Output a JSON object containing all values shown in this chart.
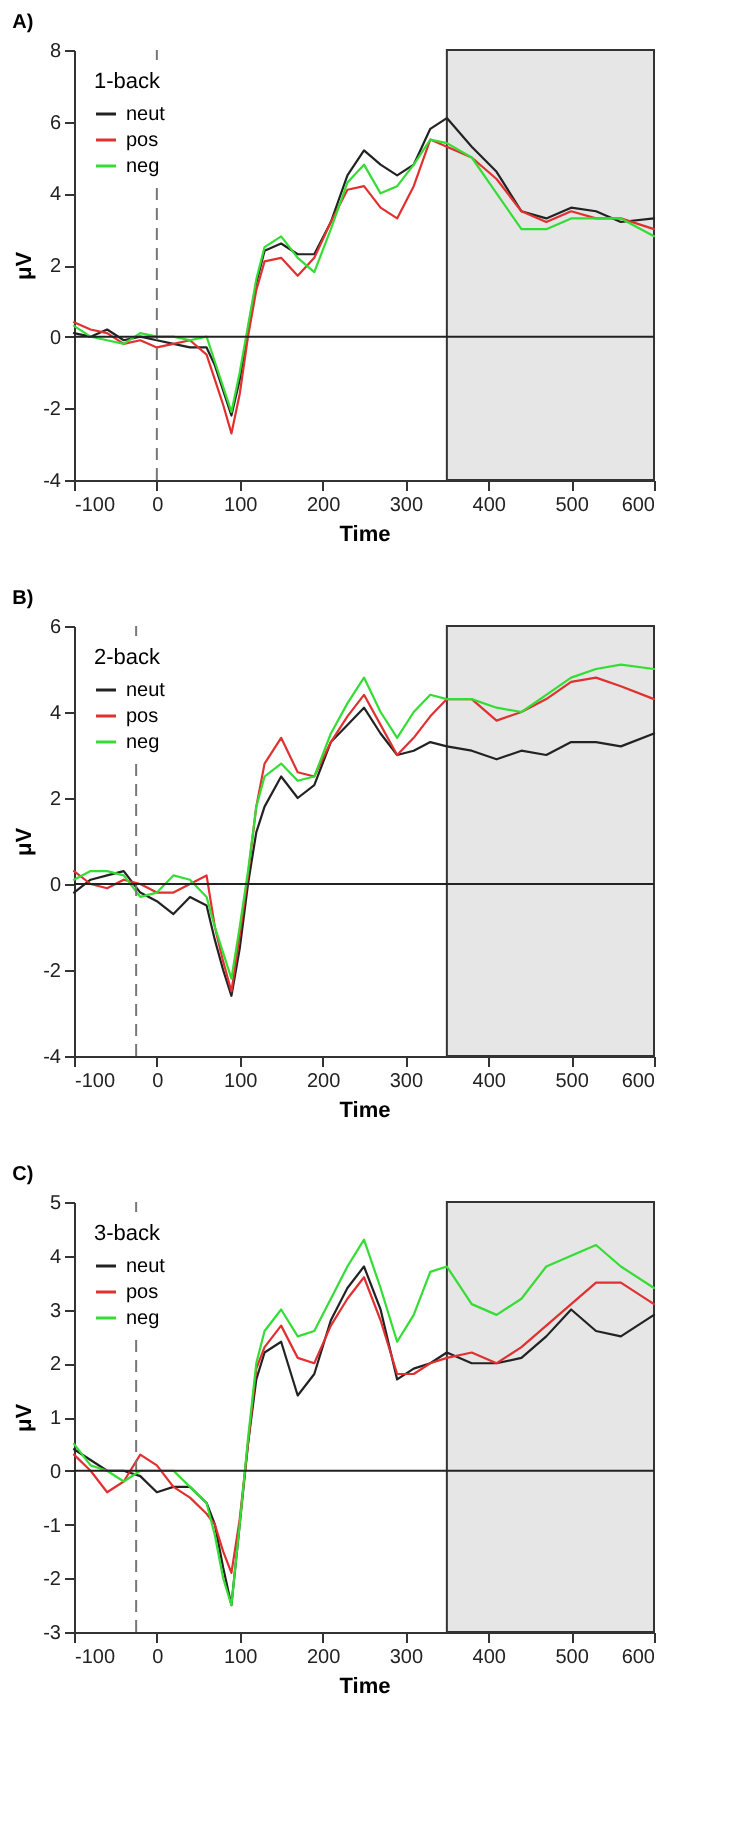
{
  "chart_data": [
    {
      "type": "line",
      "title": "A)",
      "xlabel": "Time",
      "ylabel": "μV",
      "legend_title": "1-back",
      "legend": "top left",
      "grid": false,
      "line_style": "solid",
      "marker": "none",
      "xlim": [
        -100,
        600
      ],
      "xticks": [
        -100,
        0,
        100,
        200,
        300,
        400,
        500,
        600
      ],
      "ylim": [
        -4,
        8
      ],
      "yticks": [
        -4,
        -2,
        0,
        2,
        4,
        6,
        8
      ],
      "x": [
        -100,
        -80,
        -60,
        -40,
        -20,
        0,
        20,
        40,
        60,
        70,
        80,
        90,
        100,
        110,
        120,
        130,
        150,
        170,
        190,
        210,
        230,
        250,
        270,
        290,
        310,
        330,
        350,
        380,
        410,
        440,
        470,
        500,
        530,
        560,
        600
      ],
      "series": [
        {
          "name": "neut",
          "color": "#222222",
          "values": [
            0.1,
            0.0,
            0.2,
            -0.1,
            0,
            -0.1,
            -0.2,
            -0.3,
            -0.3,
            -0.8,
            -1.5,
            -2.2,
            -1.2,
            0.2,
            1.5,
            2.4,
            2.6,
            2.3,
            2.3,
            3.2,
            4.5,
            5.2,
            4.8,
            4.5,
            4.8,
            5.8,
            6.1,
            5.3,
            4.6,
            3.5,
            3.3,
            3.6,
            3.5,
            3.2,
            3.3
          ]
        },
        {
          "name": "pos",
          "color": "#e03030",
          "values": [
            0.4,
            0.2,
            0.1,
            -0.2,
            -0.1,
            -0.3,
            -0.2,
            -0.1,
            -0.5,
            -1.2,
            -1.9,
            -2.7,
            -1.6,
            0.0,
            1.3,
            2.1,
            2.2,
            1.7,
            2.2,
            3.2,
            4.1,
            4.2,
            3.6,
            3.3,
            4.2,
            5.5,
            5.3,
            5.0,
            4.4,
            3.5,
            3.2,
            3.5,
            3.3,
            3.3,
            3.0
          ]
        },
        {
          "name": "neg",
          "color": "#33dd33",
          "values": [
            0.3,
            0.0,
            -0.1,
            -0.2,
            0.1,
            0.0,
            0.0,
            -0.1,
            0.0,
            -0.7,
            -1.4,
            -2.1,
            -1.0,
            0.3,
            1.6,
            2.5,
            2.8,
            2.2,
            1.8,
            3.0,
            4.3,
            4.8,
            4.0,
            4.2,
            4.8,
            5.5,
            5.4,
            5.0,
            4.0,
            3.0,
            3.0,
            3.3,
            3.3,
            3.3,
            2.8
          ]
        }
      ],
      "ref_lines": [
        {
          "axis": "x",
          "value": 0,
          "color": "#777777",
          "line_style": "dashed"
        },
        {
          "axis": "y",
          "value": 0,
          "color": "#222222",
          "line_style": "solid"
        }
      ],
      "bands": [
        {
          "axis": "x",
          "from": 350,
          "to": 600,
          "color": "#e6e6e6"
        }
      ]
    },
    {
      "type": "line",
      "title": "B)",
      "xlabel": "Time",
      "ylabel": "μV",
      "legend_title": "2-back",
      "legend": "top left",
      "grid": false,
      "line_style": "solid",
      "marker": "none",
      "xlim": [
        -100,
        600
      ],
      "xticks": [
        -100,
        0,
        100,
        200,
        300,
        400,
        500,
        600
      ],
      "ylim": [
        -4,
        6
      ],
      "yticks": [
        -4,
        -2,
        0,
        2,
        4,
        6
      ],
      "x": [
        -100,
        -80,
        -60,
        -40,
        -20,
        0,
        20,
        40,
        60,
        70,
        80,
        90,
        100,
        110,
        120,
        130,
        150,
        170,
        190,
        210,
        230,
        250,
        270,
        290,
        310,
        330,
        350,
        380,
        410,
        440,
        470,
        500,
        530,
        560,
        600
      ],
      "series": [
        {
          "name": "neut",
          "color": "#222222",
          "values": [
            -0.2,
            0.1,
            0.2,
            0.3,
            -0.2,
            -0.4,
            -0.7,
            -0.3,
            -0.5,
            -1.3,
            -2.0,
            -2.6,
            -1.5,
            0.0,
            1.2,
            1.8,
            2.5,
            2.0,
            2.3,
            3.3,
            3.7,
            4.1,
            3.5,
            3.0,
            3.1,
            3.3,
            3.2,
            3.1,
            2.9,
            3.1,
            3.0,
            3.3,
            3.3,
            3.2,
            3.5
          ]
        },
        {
          "name": "pos",
          "color": "#e03030",
          "values": [
            0.3,
            0.0,
            -0.1,
            0.1,
            0.0,
            -0.2,
            -0.2,
            0.0,
            0.2,
            -1.0,
            -1.8,
            -2.5,
            -1.2,
            0.2,
            1.8,
            2.8,
            3.4,
            2.6,
            2.5,
            3.3,
            3.9,
            4.4,
            3.7,
            3.0,
            3.4,
            3.9,
            4.3,
            4.3,
            3.8,
            4.0,
            4.3,
            4.7,
            4.8,
            4.6,
            4.3
          ]
        },
        {
          "name": "neg",
          "color": "#33dd33",
          "values": [
            0.1,
            0.3,
            0.3,
            0.2,
            -0.3,
            -0.2,
            0.2,
            0.1,
            -0.3,
            -1.0,
            -1.6,
            -2.2,
            -1.0,
            0.3,
            1.8,
            2.5,
            2.8,
            2.4,
            2.5,
            3.5,
            4.2,
            4.8,
            4.0,
            3.4,
            4.0,
            4.4,
            4.3,
            4.3,
            4.1,
            4.0,
            4.4,
            4.8,
            5.0,
            5.1,
            5.0
          ]
        }
      ],
      "ref_lines": [
        {
          "axis": "x",
          "value": -25,
          "color": "#777777",
          "line_style": "dashed"
        },
        {
          "axis": "y",
          "value": 0,
          "color": "#222222",
          "line_style": "solid"
        }
      ],
      "bands": [
        {
          "axis": "x",
          "from": 350,
          "to": 600,
          "color": "#e6e6e6"
        }
      ]
    },
    {
      "type": "line",
      "title": "C)",
      "xlabel": "Time",
      "ylabel": "μV",
      "legend_title": "3-back",
      "legend": "top left",
      "grid": false,
      "line_style": "solid",
      "marker": "none",
      "xlim": [
        -100,
        600
      ],
      "xticks": [
        -100,
        0,
        100,
        200,
        300,
        400,
        500,
        600
      ],
      "ylim": [
        -3,
        5
      ],
      "yticks": [
        -3,
        -2,
        -1,
        0,
        1,
        2,
        3,
        4,
        5
      ],
      "x": [
        -100,
        -80,
        -60,
        -40,
        -20,
        0,
        20,
        40,
        60,
        70,
        80,
        90,
        100,
        110,
        120,
        130,
        150,
        170,
        190,
        210,
        230,
        250,
        270,
        290,
        310,
        330,
        350,
        380,
        410,
        440,
        470,
        500,
        530,
        560,
        600
      ],
      "series": [
        {
          "name": "neut",
          "color": "#222222",
          "values": [
            0.4,
            0.2,
            0.0,
            0.0,
            -0.1,
            -0.4,
            -0.3,
            -0.3,
            -0.6,
            -1.0,
            -1.8,
            -2.5,
            -1.0,
            0.5,
            1.7,
            2.2,
            2.4,
            1.4,
            1.8,
            2.8,
            3.4,
            3.8,
            3.0,
            1.7,
            1.9,
            2.0,
            2.2,
            2.0,
            2.0,
            2.1,
            2.5,
            3.0,
            2.6,
            2.5,
            2.9
          ]
        },
        {
          "name": "pos",
          "color": "#e03030",
          "values": [
            0.3,
            0.0,
            -0.4,
            -0.2,
            0.3,
            0.1,
            -0.3,
            -0.5,
            -0.8,
            -1.0,
            -1.5,
            -1.9,
            -0.9,
            0.5,
            1.9,
            2.3,
            2.7,
            2.1,
            2.0,
            2.7,
            3.2,
            3.6,
            2.8,
            1.8,
            1.8,
            2.0,
            2.1,
            2.2,
            2.0,
            2.3,
            2.7,
            3.1,
            3.5,
            3.5,
            3.1
          ]
        },
        {
          "name": "neg",
          "color": "#33dd33",
          "values": [
            0.5,
            0.1,
            0.0,
            -0.2,
            0.0,
            0.0,
            0.0,
            -0.3,
            -0.6,
            -1.2,
            -2.0,
            -2.5,
            -1.0,
            0.6,
            2.0,
            2.6,
            3.0,
            2.5,
            2.6,
            3.2,
            3.8,
            4.3,
            3.4,
            2.4,
            2.9,
            3.7,
            3.8,
            3.1,
            2.9,
            3.2,
            3.8,
            4.0,
            4.2,
            3.8,
            3.4
          ]
        }
      ],
      "ref_lines": [
        {
          "axis": "x",
          "value": -25,
          "color": "#777777",
          "line_style": "dashed"
        },
        {
          "axis": "y",
          "value": 0,
          "color": "#222222",
          "line_style": "solid"
        }
      ],
      "bands": [
        {
          "axis": "x",
          "from": 350,
          "to": 600,
          "color": "#e6e6e6"
        }
      ]
    }
  ]
}
